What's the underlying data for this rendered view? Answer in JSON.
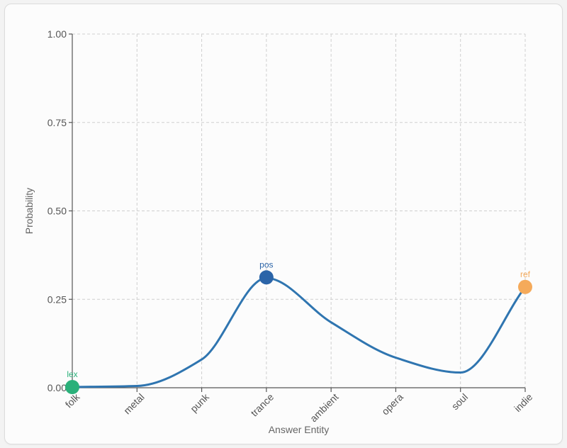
{
  "chart_data": {
    "type": "line",
    "title": "",
    "xlabel": "Answer Entity",
    "ylabel": "Probability",
    "categories": [
      "folk",
      "metal",
      "punk",
      "trance",
      "ambient",
      "opera",
      "soul",
      "indie"
    ],
    "series": [
      {
        "values": [
          0.002,
          0.005,
          0.08,
          0.31,
          0.185,
          0.085,
          0.043,
          0.285
        ],
        "color": "#2f75b0"
      }
    ],
    "ylim": [
      0,
      1
    ],
    "yticks": [
      "0.00",
      "0.25",
      "0.50",
      "0.75",
      "1.00"
    ],
    "grid": true,
    "highlights": [
      {
        "label": "lex",
        "category": "folk",
        "value": 0.002,
        "color": "#2bb07a"
      },
      {
        "label": "pos",
        "category": "trance",
        "value": 0.312,
        "color": "#2b64a8"
      },
      {
        "label": "ref",
        "category": "indie",
        "value": 0.285,
        "color": "#f5aa5a"
      }
    ]
  }
}
